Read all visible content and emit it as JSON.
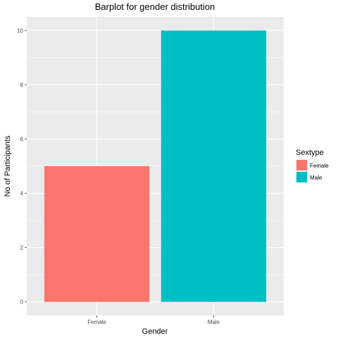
{
  "chart_data": {
    "type": "bar",
    "title": "Barplot for gender distribution",
    "xlabel": "Gender",
    "ylabel": "No of Participants",
    "categories": [
      "Female",
      "Male"
    ],
    "values": [
      5,
      10
    ],
    "colors": [
      "#F8766D",
      "#00BFC4"
    ],
    "ylim": [
      -0.5,
      10.5
    ],
    "yticks": [
      0,
      2,
      4,
      6,
      8,
      10
    ],
    "grid": true,
    "panel_background": "#EBEBEB",
    "grid_color": "#FFFFFF",
    "legend": {
      "title": "Sextype",
      "position": "right",
      "entries": [
        {
          "label": "Female",
          "color": "#F8766D"
        },
        {
          "label": "Male",
          "color": "#00BFC4"
        }
      ]
    }
  }
}
